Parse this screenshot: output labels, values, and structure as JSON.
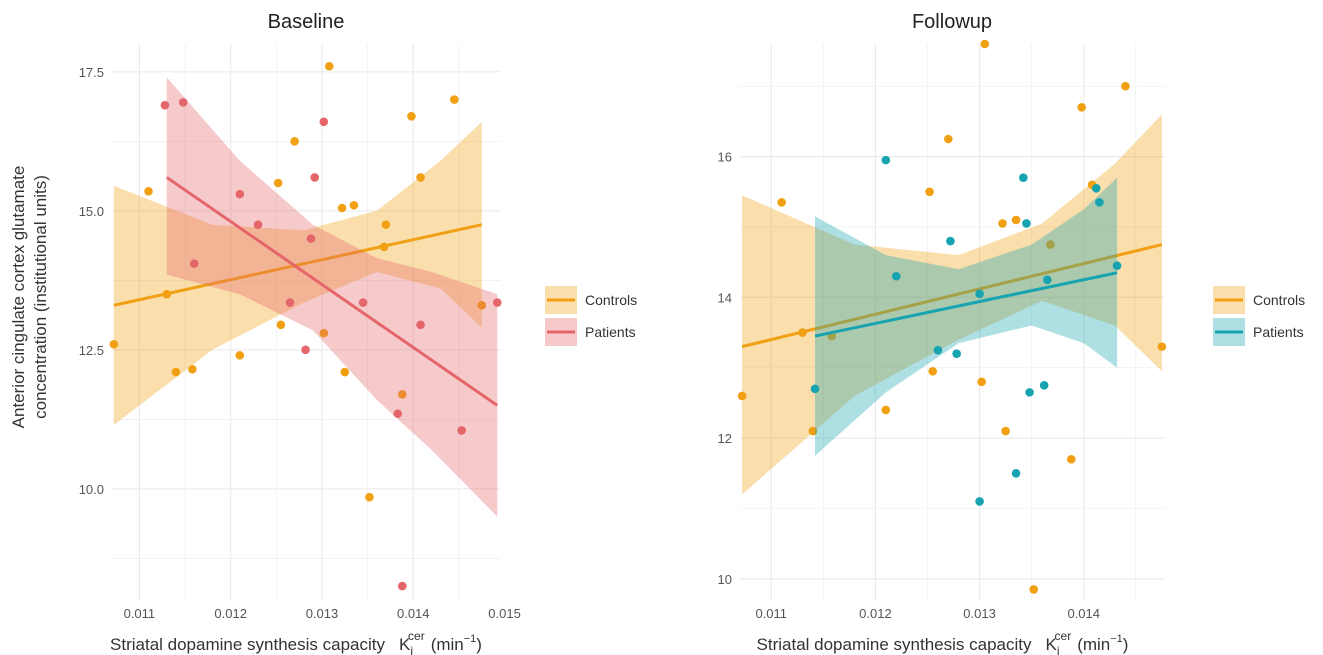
{
  "figure": {
    "ylabel_line1": "Anterior cingulate cortex glutamate",
    "ylabel_line2": "concentration (institutional units)"
  },
  "chart_data": [
    {
      "type": "scatter",
      "title": "Baseline",
      "xlabel": "Striatal dopamine synthesis capacity",
      "xlabel_symbol": "K",
      "xlabel_sub": "i",
      "xlabel_sup": "cer",
      "xlabel_unit_open": "(min",
      "xlabel_unit_sup": "−1",
      "xlabel_unit_close": ")",
      "xlim": [
        0.0107,
        0.01495
      ],
      "ylim": [
        8.0,
        18.0
      ],
      "xticks": [
        0.011,
        0.012,
        0.013,
        0.014,
        0.015
      ],
      "xtick_labels": [
        "0.011",
        "0.012",
        "0.013",
        "0.014",
        "0.015"
      ],
      "yticks": [
        10.0,
        12.5,
        15.0,
        17.5
      ],
      "ytick_labels": [
        "10.0",
        "12.5",
        "15.0",
        "17.5"
      ],
      "grid": true,
      "legend_position": "right",
      "series": [
        {
          "name": "Controls",
          "color": "#F0A012",
          "points": [
            [
              0.01072,
              12.6
            ],
            [
              0.0111,
              15.35
            ],
            [
              0.0113,
              13.5
            ],
            [
              0.0114,
              12.1
            ],
            [
              0.01158,
              12.15
            ],
            [
              0.0121,
              12.4
            ],
            [
              0.01252,
              15.5
            ],
            [
              0.01255,
              12.95
            ],
            [
              0.0127,
              16.25
            ],
            [
              0.01302,
              12.8
            ],
            [
              0.01308,
              17.6
            ],
            [
              0.01322,
              15.05
            ],
            [
              0.01325,
              12.1
            ],
            [
              0.01335,
              15.1
            ],
            [
              0.01352,
              9.85
            ],
            [
              0.01368,
              14.35
            ],
            [
              0.0137,
              14.75
            ],
            [
              0.01388,
              11.7
            ],
            [
              0.01398,
              16.7
            ],
            [
              0.01408,
              15.6
            ],
            [
              0.01445,
              17.0
            ],
            [
              0.01475,
              13.3
            ]
          ],
          "fit": [
            [
              0.01072,
              13.3
            ],
            [
              0.01475,
              14.75
            ]
          ],
          "band_upper": [
            [
              0.01072,
              15.45
            ],
            [
              0.0118,
              14.75
            ],
            [
              0.0128,
              14.65
            ],
            [
              0.0136,
              15.0
            ],
            [
              0.0143,
              15.9
            ],
            [
              0.01475,
              16.6
            ]
          ],
          "band_lower": [
            [
              0.01072,
              11.15
            ],
            [
              0.0118,
              12.5
            ],
            [
              0.0128,
              13.35
            ],
            [
              0.0136,
              13.9
            ],
            [
              0.0143,
              13.6
            ],
            [
              0.01475,
              12.9
            ]
          ]
        },
        {
          "name": "Patients",
          "color": "#E5666A",
          "points": [
            [
              0.01128,
              16.9
            ],
            [
              0.01148,
              16.95
            ],
            [
              0.0116,
              14.05
            ],
            [
              0.0121,
              15.3
            ],
            [
              0.0123,
              14.75
            ],
            [
              0.01265,
              13.35
            ],
            [
              0.01282,
              12.5
            ],
            [
              0.01288,
              14.5
            ],
            [
              0.01292,
              15.6
            ],
            [
              0.01302,
              16.6
            ],
            [
              0.01345,
              13.35
            ],
            [
              0.01383,
              11.35
            ],
            [
              0.01388,
              8.25
            ],
            [
              0.01408,
              12.95
            ],
            [
              0.01453,
              11.05
            ],
            [
              0.01492,
              13.35
            ]
          ],
          "fit": [
            [
              0.0113,
              15.6
            ],
            [
              0.01492,
              11.5
            ]
          ],
          "band_upper": [
            [
              0.0113,
              17.4
            ],
            [
              0.0121,
              15.9
            ],
            [
              0.0129,
              14.75
            ],
            [
              0.0136,
              14.15
            ],
            [
              0.0142,
              13.9
            ],
            [
              0.01492,
              13.5
            ]
          ],
          "band_lower": [
            [
              0.0113,
              13.85
            ],
            [
              0.0121,
              13.5
            ],
            [
              0.0129,
              12.85
            ],
            [
              0.0136,
              11.6
            ],
            [
              0.0142,
              10.7
            ],
            [
              0.01492,
              9.5
            ]
          ]
        }
      ]
    },
    {
      "type": "scatter",
      "title": "Followup",
      "xlabel": "Striatal dopamine synthesis capacity",
      "xlabel_symbol": "K",
      "xlabel_sub": "i",
      "xlabel_sup": "cer",
      "xlabel_unit_open": "(min",
      "xlabel_unit_sup": "−1",
      "xlabel_unit_close": ")",
      "xlim": [
        0.0107,
        0.01478
      ],
      "ylim": [
        9.7,
        17.6
      ],
      "xticks": [
        0.011,
        0.012,
        0.013,
        0.014
      ],
      "xtick_labels": [
        "0.011",
        "0.012",
        "0.013",
        "0.014"
      ],
      "yticks": [
        10,
        12,
        14,
        16
      ],
      "ytick_labels": [
        "10",
        "12",
        "14",
        "16"
      ],
      "grid": true,
      "legend_position": "right",
      "series": [
        {
          "name": "Controls",
          "color": "#F0A012",
          "points": [
            [
              0.01072,
              12.6
            ],
            [
              0.0111,
              15.35
            ],
            [
              0.0113,
              13.5
            ],
            [
              0.0114,
              12.1
            ],
            [
              0.01158,
              13.45
            ],
            [
              0.0121,
              12.4
            ],
            [
              0.01252,
              15.5
            ],
            [
              0.01255,
              12.95
            ],
            [
              0.0127,
              16.25
            ],
            [
              0.01302,
              12.8
            ],
            [
              0.01305,
              17.6
            ],
            [
              0.01322,
              15.05
            ],
            [
              0.01325,
              12.1
            ],
            [
              0.01335,
              15.1
            ],
            [
              0.01352,
              9.85
            ],
            [
              0.01368,
              14.75
            ],
            [
              0.01388,
              11.7
            ],
            [
              0.01398,
              16.7
            ],
            [
              0.01408,
              15.6
            ],
            [
              0.0144,
              17.0
            ],
            [
              0.01475,
              13.3
            ]
          ],
          "fit": [
            [
              0.01072,
              13.3
            ],
            [
              0.01475,
              14.75
            ]
          ],
          "band_upper": [
            [
              0.01072,
              15.45
            ],
            [
              0.0118,
              14.75
            ],
            [
              0.0128,
              14.6
            ],
            [
              0.0136,
              15.05
            ],
            [
              0.0143,
              15.9
            ],
            [
              0.01475,
              16.6
            ]
          ],
          "band_lower": [
            [
              0.01072,
              11.2
            ],
            [
              0.0118,
              12.6
            ],
            [
              0.0128,
              13.4
            ],
            [
              0.0136,
              13.95
            ],
            [
              0.0143,
              13.6
            ],
            [
              0.01475,
              12.95
            ]
          ]
        },
        {
          "name": "Patients",
          "color": "#17A3B0",
          "points": [
            [
              0.01142,
              12.7
            ],
            [
              0.0121,
              15.95
            ],
            [
              0.0122,
              14.3
            ],
            [
              0.0126,
              13.25
            ],
            [
              0.01272,
              14.8
            ],
            [
              0.01278,
              13.2
            ],
            [
              0.013,
              14.05
            ],
            [
              0.013,
              11.1
            ],
            [
              0.01335,
              11.5
            ],
            [
              0.01342,
              15.7
            ],
            [
              0.01345,
              15.05
            ],
            [
              0.01348,
              12.65
            ],
            [
              0.01362,
              12.75
            ],
            [
              0.01365,
              14.25
            ],
            [
              0.01412,
              15.55
            ],
            [
              0.01415,
              15.35
            ],
            [
              0.01432,
              14.45
            ]
          ],
          "fit": [
            [
              0.01142,
              13.45
            ],
            [
              0.01432,
              14.35
            ]
          ],
          "band_upper": [
            [
              0.01142,
              15.15
            ],
            [
              0.0121,
              14.6
            ],
            [
              0.0128,
              14.4
            ],
            [
              0.0135,
              14.75
            ],
            [
              0.014,
              15.25
            ],
            [
              0.01432,
              15.7
            ]
          ],
          "band_lower": [
            [
              0.01142,
              11.75
            ],
            [
              0.0121,
              12.65
            ],
            [
              0.0128,
              13.35
            ],
            [
              0.0135,
              13.6
            ],
            [
              0.014,
              13.35
            ],
            [
              0.01432,
              13.0
            ]
          ]
        }
      ]
    }
  ]
}
